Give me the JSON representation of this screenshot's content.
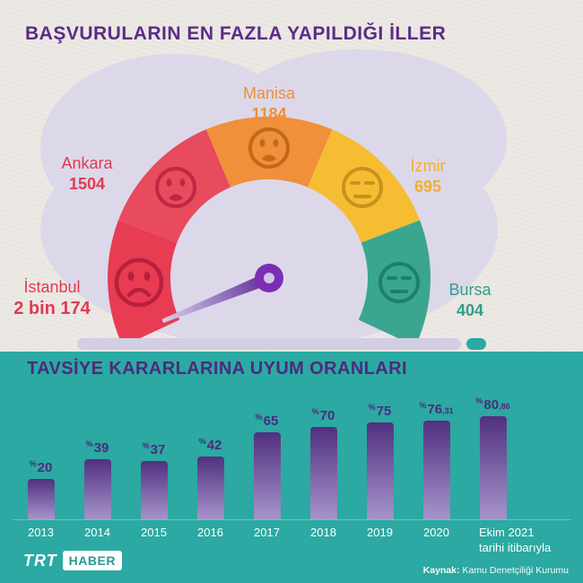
{
  "header": {
    "title": "BAŞVURULARIN EN FAZLA YAPILDIĞI İLLER"
  },
  "colors": {
    "title_purple": "#5b2c87",
    "section_title_purple": "#4c2a7e",
    "teal_background": "#2ba9a2",
    "paper_background": "#eae7e2",
    "blob_lavender": "#dcd8ea",
    "strip_lavender": "#d2cee4",
    "needle_purple": "#7c2db6",
    "bar_gradient_top": "#50307f",
    "bar_gradient_bottom": "#a694cb",
    "bar_label_purple": "#4c2a7e",
    "year_label_white": "#ffffff"
  },
  "chart_data": [
    {
      "type": "gauge",
      "title": "BAŞVURULARIN EN FAZLA YAPILDIĞI İLLER",
      "segments": [
        {
          "label": "İstanbul",
          "value": "2 bin 174",
          "numeric": 2174,
          "color": "#e73c52",
          "face_color": "#b81f3e",
          "label_color": "#e13a51",
          "mood": "very-sad"
        },
        {
          "label": "Ankara",
          "value": "1504",
          "numeric": 1504,
          "color": "#e84a5e",
          "face_color": "#c32544",
          "label_color": "#e13a51",
          "mood": "sad"
        },
        {
          "label": "Manisa",
          "value": "1184",
          "numeric": 1184,
          "color": "#f0903a",
          "face_color": "#c06a1a",
          "label_color": "#ee8f35",
          "mood": "sad"
        },
        {
          "label": "İzmir",
          "value": "695",
          "numeric": 695,
          "color": "#f6bd33",
          "face_color": "#c9921e",
          "label_color": "#f1b02c",
          "mood": "neutral"
        },
        {
          "label": "Bursa",
          "value": "404",
          "numeric": 404,
          "color": "#3aa68f",
          "face_color": "#1b8070",
          "label_color": "#2f9e89",
          "mood": "neutral"
        }
      ]
    },
    {
      "type": "bar",
      "title": "TAVSİYE KARARLARINA UYUM ORANLARI",
      "categories": [
        "2013",
        "2014",
        "2015",
        "2016",
        "2017",
        "2018",
        "2019",
        "2020",
        "Ekim 2021\ntarihi itibarıyla"
      ],
      "values": [
        20,
        39,
        37,
        42,
        65,
        70,
        75,
        76.31,
        80.86
      ],
      "labels": [
        "%20",
        "%39",
        "%37",
        "%42",
        "%65",
        "%70",
        "%75",
        "%76,31",
        "%80,86"
      ],
      "ylim": [
        0,
        100
      ]
    }
  ],
  "footer": {
    "logo_trt": "TRT",
    "logo_haber": "HABER",
    "source_label": "Kaynak:",
    "source_text": "Kamu Denetçiliği Kurumu"
  }
}
